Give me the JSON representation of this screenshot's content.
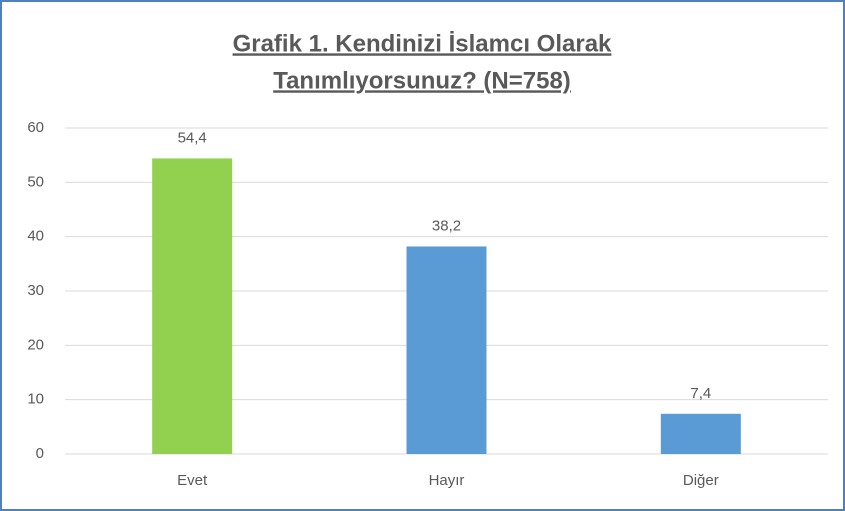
{
  "chart_data": {
    "type": "bar",
    "title": [
      "Grafik  1. Kendinizi İslamcı Olarak",
      "Tanımlıyorsunuz? (N=758)"
    ],
    "categories": [
      "Evet",
      "Hayır",
      "Diğer"
    ],
    "values": [
      54.4,
      38.2,
      7.4
    ],
    "value_labels": [
      "54,4",
      "38,2",
      "7,4"
    ],
    "colors": [
      "#92d050",
      "#5b9bd5",
      "#5b9bd5"
    ],
    "ylim": [
      0,
      60
    ],
    "yticks": [
      0,
      10,
      20,
      30,
      40,
      50,
      60
    ],
    "grid": true
  }
}
